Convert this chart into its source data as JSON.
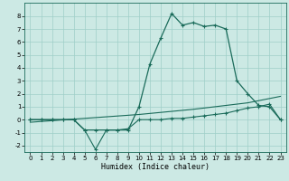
{
  "xlabel": "Humidex (Indice chaleur)",
  "line1_x": [
    0,
    1,
    2,
    3,
    4,
    5,
    6,
    7,
    8,
    9,
    10,
    11,
    12,
    13,
    14,
    15,
    16,
    17,
    18,
    19,
    20,
    21,
    22,
    23
  ],
  "line1_y": [
    0.0,
    0.0,
    0.0,
    0.0,
    0.0,
    -0.8,
    -0.8,
    -0.8,
    -0.8,
    -0.8,
    1.0,
    4.3,
    6.3,
    8.2,
    7.3,
    7.5,
    7.2,
    7.3,
    7.0,
    3.0,
    2.0,
    1.1,
    1.0,
    0.0
  ],
  "line2_x": [
    0,
    1,
    2,
    3,
    4,
    5,
    6,
    7,
    8,
    9,
    10,
    11,
    12,
    13,
    14,
    15,
    16,
    17,
    18,
    19,
    20,
    21,
    22,
    23
  ],
  "line2_y": [
    0.0,
    0.0,
    0.0,
    0.0,
    0.0,
    -0.8,
    -2.3,
    -0.8,
    -0.8,
    -0.7,
    0.0,
    0.0,
    0.0,
    0.1,
    0.1,
    0.2,
    0.3,
    0.4,
    0.5,
    0.7,
    0.9,
    1.0,
    1.2,
    0.0
  ],
  "line3_x": [
    0,
    5,
    10,
    15,
    20,
    23
  ],
  "line3_y": [
    -0.2,
    0.1,
    0.4,
    0.8,
    1.3,
    1.8
  ],
  "line_color": "#1a6b5a",
  "bg_color": "#cce9e4",
  "grid_color": "#9fcfc8",
  "ylim": [
    -2.5,
    9.0
  ],
  "xlim": [
    -0.5,
    23.5
  ],
  "yticks": [
    -2,
    -1,
    0,
    1,
    2,
    3,
    4,
    5,
    6,
    7,
    8
  ],
  "xticks": [
    0,
    1,
    2,
    3,
    4,
    5,
    6,
    7,
    8,
    9,
    10,
    11,
    12,
    13,
    14,
    15,
    16,
    17,
    18,
    19,
    20,
    21,
    22,
    23
  ]
}
